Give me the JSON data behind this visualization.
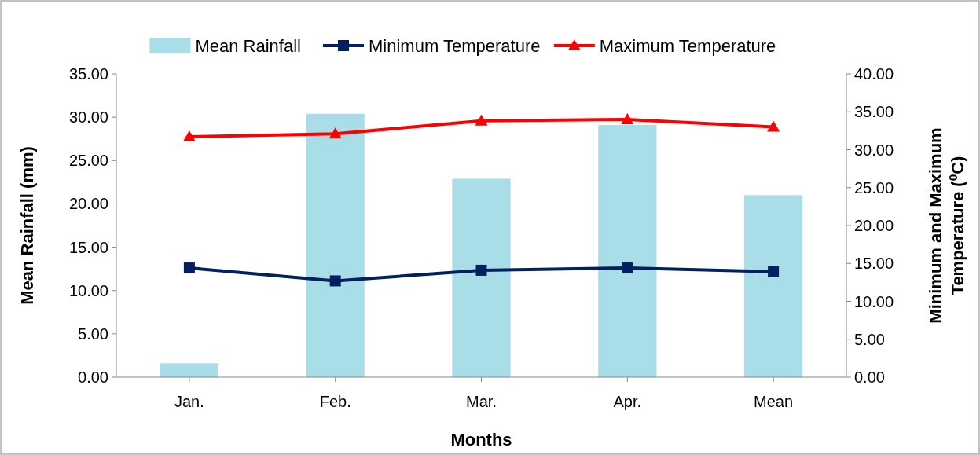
{
  "chart_data": {
    "type": "bar",
    "xlabel": "Months",
    "ylabel": "Mean Rainfall (mm)",
    "y2label": "Minimum and Maximum Temperature ($^{0}$C)",
    "categories": [
      "Jan.",
      "Feb.",
      "Mar.",
      "Apr.",
      "Mean"
    ],
    "series": [
      {
        "name": "Mean Rainfall",
        "color": "#a9dde8",
        "values": [
          1.6,
          30.4,
          22.9,
          29.1,
          21.0
        ]
      },
      {
        "name": "Minimum Temperature",
        "type": "line",
        "axis": "y2",
        "marker": "square",
        "color": "#002060",
        "values": [
          14.4,
          12.7,
          14.1,
          14.4,
          13.9
        ]
      },
      {
        "name": "Maximum Temperature",
        "type": "line",
        "axis": "y2",
        "marker": "triangle",
        "color": "#ff0000",
        "values": [
          31.7,
          32.1,
          33.8,
          34.0,
          33.0
        ]
      }
    ],
    "ylim": [
      0,
      35
    ],
    "yticks": [
      {
        "value": 0,
        "label": "0.00"
      },
      {
        "value": 5,
        "label": "5.00"
      },
      {
        "value": 10,
        "label": "10.00"
      },
      {
        "value": 15,
        "label": "15.00"
      },
      {
        "value": 20,
        "label": "20.00"
      },
      {
        "value": 25,
        "label": "25.00"
      },
      {
        "value": 30,
        "label": "30.00"
      },
      {
        "value": 35,
        "label": "35.00"
      }
    ],
    "y2lim": [
      0,
      40
    ],
    "y2ticks": [
      {
        "value": 0,
        "label": "0.00"
      },
      {
        "value": 5,
        "label": "5.00"
      },
      {
        "value": 10,
        "label": "10.00"
      },
      {
        "value": 15,
        "label": "15.00"
      },
      {
        "value": 20,
        "label": "20.00"
      },
      {
        "value": 25,
        "label": "25.00"
      },
      {
        "value": 30,
        "label": "30.00"
      },
      {
        "value": 35,
        "label": "35.00"
      },
      {
        "value": 40,
        "label": "40.00"
      }
    ],
    "legend": "top",
    "grid": false
  }
}
